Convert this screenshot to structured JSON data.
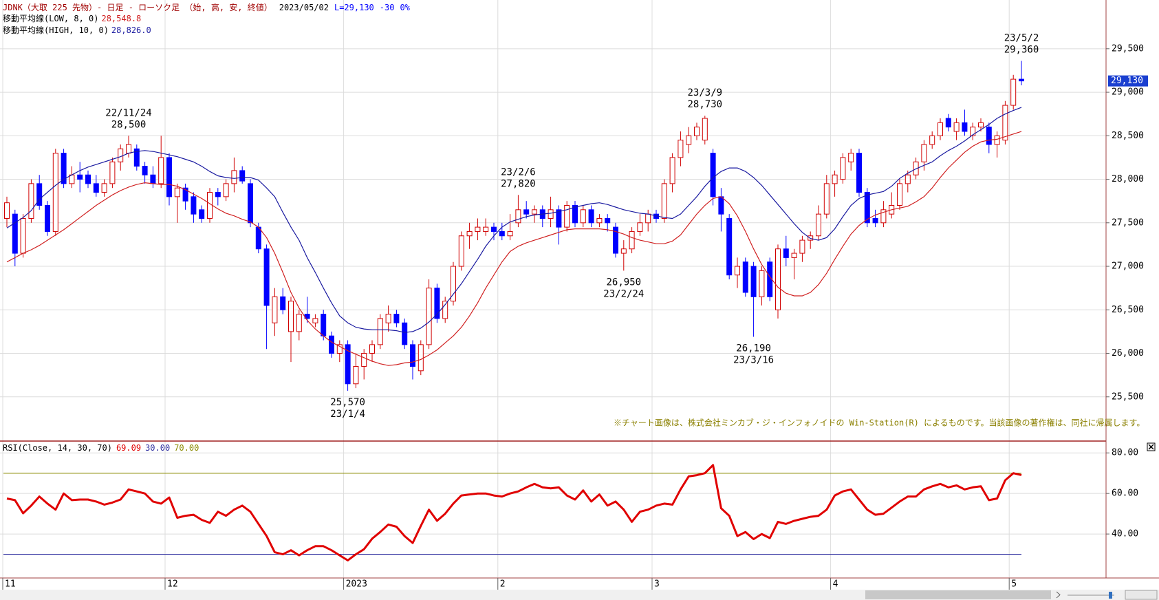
{
  "header": {
    "title": "JDNK（大取 225 先物）- 日足 - ローソク足 （始, 高, 安, 終値）",
    "date": "2023/05/02",
    "last": "L=29,130",
    "change": "-30",
    "change_pct": "0%"
  },
  "chart_data": [
    {
      "type": "candlestick",
      "up_color": "#d00000",
      "down_color": "#0000ff",
      "open": [
        27550,
        27600,
        27150,
        27550,
        27950,
        27700,
        27400,
        28300,
        27950,
        28050,
        28050,
        27950,
        27850,
        27950,
        28200,
        28300,
        28350,
        28150,
        28050,
        27950,
        28250,
        27800,
        27900,
        27800,
        27650,
        27550,
        27850,
        27800,
        27950,
        28100,
        27950,
        27450,
        27200,
        26350,
        26650,
        26250,
        26250,
        26450,
        26350,
        26450,
        26200,
        26000,
        26100,
        25650,
        25850,
        26000,
        26100,
        26350,
        26450,
        26350,
        26100,
        25800,
        26100,
        26750,
        26400,
        26600,
        27000,
        27350,
        27400,
        27400,
        27450,
        27400,
        27350,
        27500,
        27650,
        27600,
        27650,
        27550,
        27650,
        27450,
        27700,
        27500,
        27650,
        27500,
        27550,
        27450,
        27150,
        27200,
        27400,
        27500,
        27600,
        27550,
        27950,
        28250,
        28400,
        28500,
        28450,
        28300,
        27800,
        27550,
        26900,
        27050,
        27000,
        26650,
        27050,
        26500,
        27200,
        27100,
        27150,
        27300,
        27350,
        27600,
        27950,
        28000,
        28200,
        28300,
        27850,
        27550,
        27500,
        27600,
        27700,
        27950,
        28050,
        28200,
        28400,
        28500,
        28700,
        28550,
        28650,
        28500,
        28600,
        28600,
        28400,
        28450,
        28850,
        29150
      ],
      "high": [
        27800,
        27650,
        27600,
        28000,
        28050,
        27750,
        28350,
        28350,
        28150,
        28200,
        28100,
        28050,
        28000,
        28250,
        28400,
        28500,
        28400,
        28200,
        28150,
        28500,
        28300,
        27950,
        27950,
        27850,
        27700,
        27900,
        27900,
        28000,
        28250,
        28150,
        28000,
        27500,
        27250,
        26750,
        26750,
        26650,
        26500,
        26650,
        26450,
        26500,
        26250,
        26150,
        26150,
        26000,
        26050,
        26150,
        26450,
        26550,
        26500,
        26400,
        26150,
        26150,
        26850,
        26800,
        26650,
        27050,
        27400,
        27500,
        27550,
        27550,
        27500,
        27500,
        27600,
        27820,
        27750,
        27700,
        27700,
        27800,
        27700,
        27750,
        27750,
        27700,
        27700,
        27600,
        27600,
        27500,
        27300,
        27450,
        27600,
        27650,
        27650,
        28000,
        28300,
        28550,
        28600,
        28650,
        28730,
        28350,
        27900,
        27600,
        27100,
        27100,
        27050,
        27000,
        27100,
        27250,
        27350,
        27200,
        27350,
        27400,
        27700,
        28050,
        28100,
        28300,
        28350,
        28350,
        27900,
        27650,
        27750,
        27850,
        28000,
        28100,
        28250,
        28450,
        28550,
        28700,
        28750,
        28700,
        28800,
        28650,
        28700,
        28650,
        28550,
        28900,
        29200,
        29360
      ],
      "low": [
        27450,
        27000,
        27100,
        27500,
        27650,
        27350,
        27350,
        27900,
        27900,
        27850,
        27900,
        27800,
        27800,
        27900,
        28100,
        28250,
        28100,
        27950,
        27900,
        27900,
        27700,
        27500,
        27650,
        27500,
        27500,
        27500,
        27700,
        27750,
        27850,
        27950,
        27450,
        27150,
        26050,
        26200,
        26450,
        25900,
        26150,
        26350,
        26300,
        26150,
        25950,
        25900,
        25570,
        25600,
        25700,
        25900,
        26050,
        26250,
        26300,
        26050,
        25700,
        25750,
        26050,
        26350,
        26350,
        26550,
        26950,
        27200,
        27300,
        27350,
        27300,
        27300,
        27300,
        27450,
        27550,
        27500,
        27450,
        27450,
        27250,
        27400,
        27450,
        27450,
        27450,
        27450,
        27400,
        27100,
        26950,
        27150,
        27350,
        27400,
        27500,
        27500,
        27850,
        28150,
        28300,
        28450,
        28400,
        27700,
        27400,
        26850,
        26750,
        26650,
        26190,
        26550,
        26600,
        26400,
        27000,
        26850,
        27050,
        27200,
        27300,
        27550,
        27800,
        27950,
        28100,
        27800,
        27450,
        27450,
        27450,
        27550,
        27650,
        27850,
        28000,
        28100,
        28350,
        28450,
        28550,
        28450,
        28500,
        28450,
        28550,
        28300,
        28250,
        28400,
        28800,
        29080
      ],
      "close": [
        27730,
        27150,
        27550,
        27950,
        27700,
        27400,
        28300,
        27950,
        28050,
        28000,
        27950,
        27850,
        27950,
        28200,
        28350,
        28400,
        28150,
        28050,
        27950,
        28250,
        27800,
        27900,
        27750,
        27600,
        27550,
        27850,
        27800,
        27950,
        28100,
        27980,
        27500,
        27200,
        26550,
        26650,
        26500,
        26600,
        26450,
        26400,
        26400,
        26200,
        26000,
        26100,
        25650,
        25850,
        26000,
        26100,
        26400,
        26450,
        26350,
        26100,
        25850,
        26100,
        26750,
        26400,
        26600,
        27000,
        27350,
        27400,
        27450,
        27450,
        27400,
        27350,
        27400,
        27650,
        27600,
        27650,
        27550,
        27650,
        27450,
        27700,
        27500,
        27650,
        27500,
        27550,
        27500,
        27150,
        27200,
        27400,
        27500,
        27600,
        27550,
        27950,
        28250,
        28450,
        28500,
        28600,
        28700,
        27800,
        27600,
        26900,
        27000,
        26700,
        26650,
        26950,
        26650,
        27200,
        27100,
        27150,
        27300,
        27350,
        27600,
        27950,
        28050,
        28250,
        28300,
        27850,
        27500,
        27500,
        27650,
        27700,
        27950,
        28050,
        28200,
        28400,
        28500,
        28650,
        28600,
        28650,
        28550,
        28600,
        28650,
        28400,
        28500,
        28850,
        29150,
        29130
      ],
      "series": [
        {
          "name": "移動平均線(LOW, 8, 0)",
          "color": "#d02020",
          "last_label": "28,548.8",
          "values": [
            27050,
            27100,
            27150,
            27190,
            27240,
            27300,
            27360,
            27420,
            27490,
            27560,
            27630,
            27700,
            27760,
            27820,
            27870,
            27910,
            27940,
            27960,
            27950,
            27940,
            27940,
            27920,
            27880,
            27830,
            27780,
            27720,
            27660,
            27610,
            27580,
            27540,
            27510,
            27450,
            27330,
            27150,
            26930,
            26700,
            26520,
            26380,
            26280,
            26200,
            26130,
            26080,
            26030,
            25990,
            25950,
            25910,
            25880,
            25860,
            25870,
            25890,
            25900,
            25930,
            25980,
            26040,
            26120,
            26200,
            26300,
            26430,
            26580,
            26750,
            26900,
            27050,
            27170,
            27230,
            27270,
            27300,
            27330,
            27360,
            27390,
            27420,
            27430,
            27430,
            27430,
            27430,
            27420,
            27400,
            27370,
            27330,
            27300,
            27280,
            27260,
            27260,
            27290,
            27360,
            27480,
            27600,
            27700,
            27780,
            27800,
            27720,
            27580,
            27400,
            27200,
            27020,
            26880,
            26760,
            26690,
            26660,
            26660,
            26700,
            26790,
            26920,
            27080,
            27230,
            27370,
            27470,
            27540,
            27590,
            27620,
            27650,
            27670,
            27690,
            27740,
            27800,
            27900,
            28020,
            28130,
            28220,
            28310,
            28380,
            28430,
            28450,
            28460,
            28490,
            28520,
            28548.8
          ]
        },
        {
          "name": "移動平均線(HIGH, 10, 0)",
          "color": "#1a1aa0",
          "last_label": "28,826.0",
          "values": [
            27440,
            27500,
            27560,
            27640,
            27770,
            27850,
            27930,
            28000,
            28050,
            28100,
            28140,
            28170,
            28200,
            28230,
            28260,
            28300,
            28320,
            28330,
            28320,
            28300,
            28280,
            28260,
            28230,
            28200,
            28150,
            28090,
            28040,
            28020,
            28010,
            28020,
            28020,
            27990,
            27900,
            27800,
            27620,
            27450,
            27300,
            27100,
            26930,
            26750,
            26580,
            26430,
            26350,
            26300,
            26280,
            26270,
            26270,
            26270,
            26260,
            26240,
            26250,
            26290,
            26360,
            26450,
            26560,
            26680,
            26800,
            26940,
            27080,
            27230,
            27350,
            27450,
            27510,
            27540,
            27570,
            27590,
            27600,
            27610,
            27630,
            27650,
            27680,
            27700,
            27720,
            27730,
            27710,
            27680,
            27650,
            27630,
            27610,
            27600,
            27580,
            27560,
            27550,
            27600,
            27700,
            27800,
            27920,
            28020,
            28090,
            28130,
            28130,
            28090,
            28020,
            27930,
            27820,
            27710,
            27600,
            27490,
            27390,
            27320,
            27300,
            27330,
            27430,
            27570,
            27700,
            27780,
            27820,
            27840,
            27860,
            27920,
            28010,
            28070,
            28120,
            28160,
            28200,
            28270,
            28330,
            28380,
            28440,
            28510,
            28570,
            28630,
            28700,
            28750,
            28790,
            28826.0
          ]
        }
      ],
      "ylim": [
        25000,
        30060
      ],
      "yticks": [
        {
          "value": 25500,
          "label": "25,500"
        },
        {
          "value": 26000,
          "label": "26,000"
        },
        {
          "value": 26500,
          "label": "26,500"
        },
        {
          "value": 27000,
          "label": "27,000"
        },
        {
          "value": 27500,
          "label": "27,500"
        },
        {
          "value": 28000,
          "label": "28,000"
        },
        {
          "value": 28500,
          "label": "28,500"
        },
        {
          "value": 29000,
          "label": "29,000"
        },
        {
          "value": 29500,
          "label": "29,500"
        }
      ],
      "grid": true,
      "annotations": [
        {
          "date": "22/11/24",
          "value": 28500,
          "label": "28,500"
        },
        {
          "date": "23/2/6",
          "value": 27820,
          "label": "27,820"
        },
        {
          "date": "23/3/9",
          "value": 28730,
          "label": "28,730"
        },
        {
          "date": "23/5/2",
          "value": 29360,
          "label": "29,360"
        },
        {
          "date": "23/1/4",
          "value": 25570,
          "label": "25,570"
        },
        {
          "date": "23/2/24",
          "value": 26950,
          "label": "26,950"
        },
        {
          "date": "23/3/16",
          "value": 26190,
          "label": "26,190"
        }
      ],
      "last_price": {
        "value": 29130,
        "label": "29,130"
      },
      "note": "※チャート画像は、株式会社ミンカブ・ジ・インフォノイドの Win-Station(R) によるものです。当該画像の著作権は、同社に帰属します。"
    },
    {
      "type": "line",
      "title": "RSI(Close, 14, 30, 70)",
      "series": [
        {
          "color": "#e00000",
          "last_label": "69.09",
          "values": [
            57.5,
            56.7,
            50.2,
            54,
            58.5,
            55,
            52,
            60,
            56.7,
            57,
            57,
            56,
            54.5,
            55.5,
            57,
            62,
            61,
            60,
            56,
            55,
            58,
            48,
            49,
            49.5,
            47,
            45.5,
            51,
            49,
            52,
            54,
            51,
            45,
            39,
            31,
            30,
            32,
            29.5,
            32,
            34,
            34,
            32,
            29.5,
            27,
            30,
            32.5,
            37.7,
            41,
            44.7,
            43.6,
            39,
            35.6,
            44,
            52,
            46.5,
            50,
            55,
            59,
            59.5,
            60,
            60,
            59,
            58.5,
            60,
            61,
            63,
            64.7,
            63,
            62.5,
            63,
            59,
            57,
            61.5,
            56,
            59.5,
            54,
            56,
            52,
            46,
            51,
            52,
            54,
            55,
            54.5,
            62,
            68.4,
            69,
            70,
            74,
            52.7,
            49,
            39,
            41,
            37.5,
            40,
            38,
            46,
            45,
            46.5,
            47.5,
            48.5,
            49,
            52,
            59,
            61,
            62,
            57,
            52,
            49.5,
            50,
            53,
            56,
            58.5,
            58.5,
            62,
            63.5,
            64.7,
            63,
            64,
            62,
            63,
            63.5,
            56.7,
            57.5,
            66.5,
            70,
            69.09
          ]
        }
      ],
      "reference_lines": [
        {
          "value": 30,
          "label": "30.00",
          "color": "#3030a0"
        },
        {
          "value": 70,
          "label": "70.00",
          "color": "#8a8a00"
        }
      ],
      "ylim": [
        19,
        85.5
      ],
      "yticks": [
        {
          "value": 40,
          "label": "40.00"
        },
        {
          "value": 60,
          "label": "60.00"
        },
        {
          "value": 80,
          "label": "80.00"
        }
      ],
      "grid": true,
      "xticks": [
        {
          "value": 0,
          "label": "11"
        },
        {
          "value": 20,
          "label": "12"
        },
        {
          "value": 42,
          "label": "2023"
        },
        {
          "value": 61,
          "label": "2"
        },
        {
          "value": 80,
          "label": "3"
        },
        {
          "value": 102,
          "label": "4"
        },
        {
          "value": 124,
          "label": "5"
        }
      ]
    }
  ]
}
